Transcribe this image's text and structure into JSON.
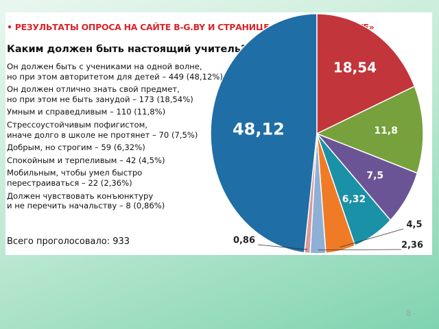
{
  "chart_data": {
    "type": "pie",
    "title": "• РЕЗУЛЬТАТЫ ОПРОСА НА САЙТЕ B-G.BY И СТРАНИЦЕ «БГ» В «ВКОНТАКТЕ»",
    "subtitle": "Каким должен быть настоящий учитель?",
    "categories": [
      "Он должен быть с учениками на одной волне,\nно при этом авторитетом для детей – 449 (48,12%)",
      "Он должен отлично знать свой предмет,\nно при этом не быть занудой – 173 (18,54%)",
      "Умным и справедливым – 110 (11,8%)",
      "Стрессоустойчивым пофигистом,\nиначе долго в школе не протянет – 70 (7,5%)",
      "Добрым, но строгим – 59 (6,32%)",
      "Спокойным и терпеливым – 42 (4,5%)",
      "Мобильным, чтобы умел быстро\nперестраиваться – 22 (2,36%)",
      "Должен чувствовать конъюнктуру\nи не перечить начальству – 8 (0,86%)"
    ],
    "values": [
      48.12,
      18.54,
      11.8,
      7.5,
      6.32,
      4.5,
      2.36,
      0.86
    ],
    "value_labels": [
      "48,12",
      "18,54",
      "11,8",
      "7,5",
      "6,32",
      "4,5",
      "2,36",
      "0,86"
    ],
    "colors": [
      "#1f6ea6",
      "#c2353b",
      "#76a13c",
      "#6b5495",
      "#1a91a7",
      "#f07b27",
      "#8fb0d6",
      "#d99a9a"
    ],
    "total": "Всего проголосовало: 933",
    "page_number": "8"
  }
}
